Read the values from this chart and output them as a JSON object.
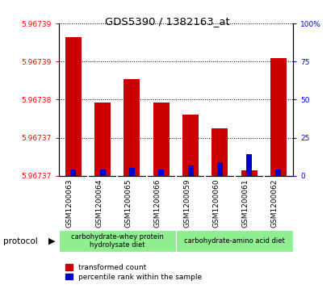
{
  "title": "GDS5390 / 1382163_at",
  "samples": [
    "GSM1200063",
    "GSM1200064",
    "GSM1200065",
    "GSM1200066",
    "GSM1200059",
    "GSM1200060",
    "GSM1200061",
    "GSM1200062"
  ],
  "red_values": [
    5.9673925,
    5.9673808,
    5.967385,
    5.9673808,
    5.9673785,
    5.967376,
    5.9673685,
    5.9673888
  ],
  "blue_values": [
    4,
    4,
    5,
    4,
    7,
    9,
    14,
    4
  ],
  "ymin": 5.9673675,
  "ymax": 5.967395,
  "right_yticks": [
    0,
    25,
    50,
    75,
    100
  ],
  "bar_color_red": "#cc0000",
  "bar_color_blue": "#0000cc",
  "background_gray": "#c8c8c8",
  "legend_red": "transformed count",
  "legend_blue": "percentile rank within the sample",
  "protocol_labels": [
    "carbohydrate-whey protein\nhydrolysate diet",
    "carbohydrate-amino acid diet"
  ],
  "protocol_label": "protocol"
}
